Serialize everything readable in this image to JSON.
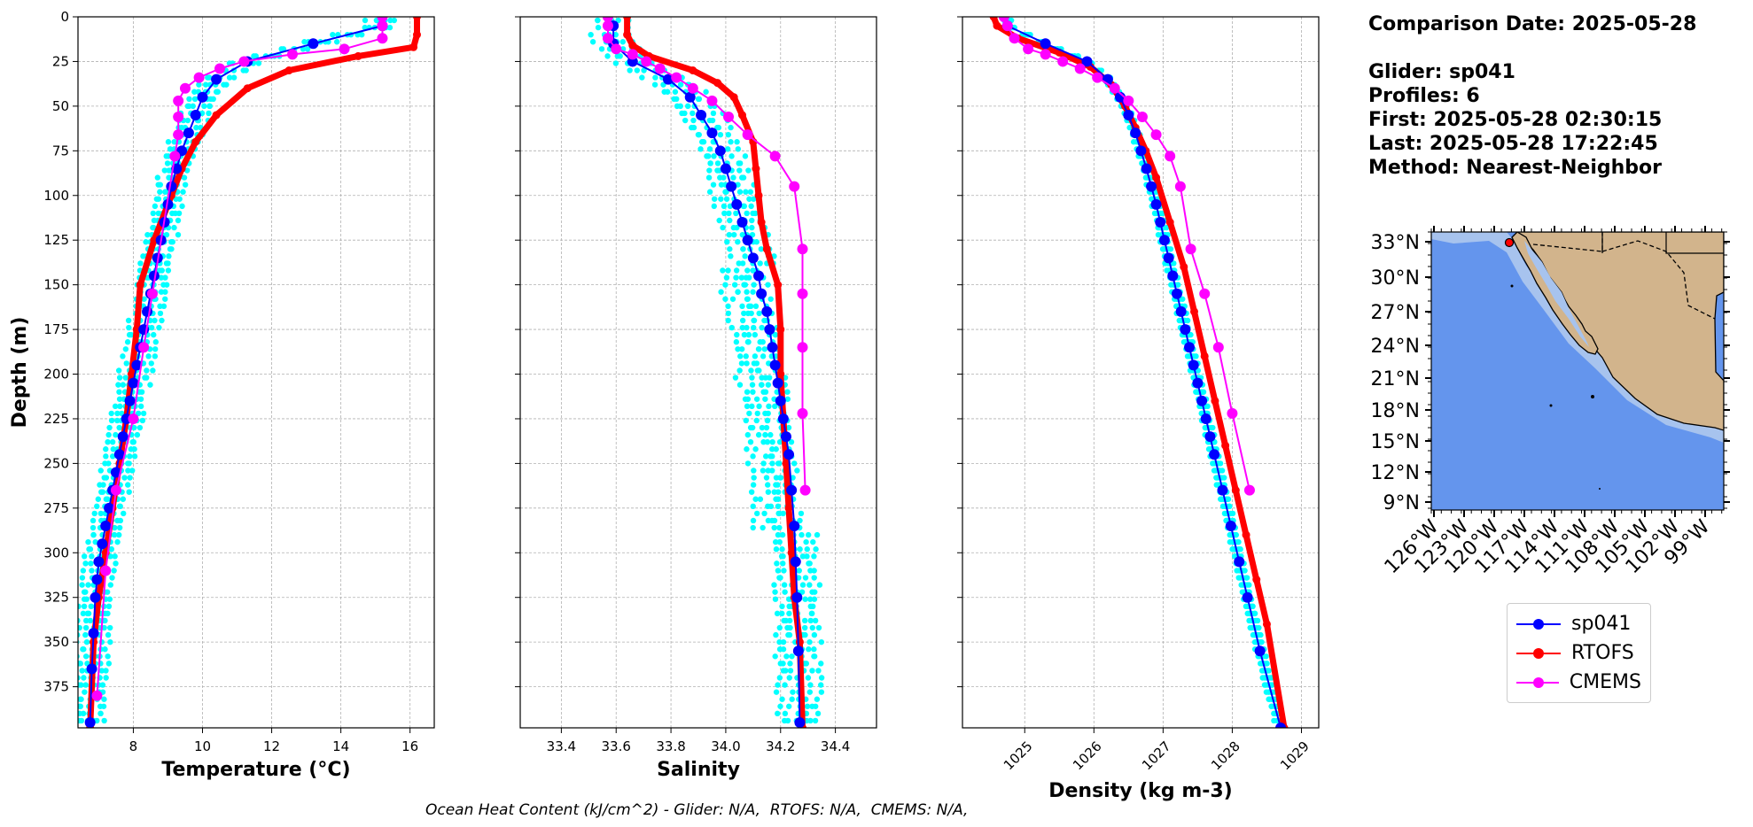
{
  "info": {
    "comparison_date": "Comparison Date: 2025-05-28",
    "glider": "Glider: sp041",
    "profiles": "Profiles: 6",
    "first": "First: 2025-05-28 02:30:15",
    "last": "Last: 2025-05-28 17:22:45",
    "method": "Method: Nearest-Neighbor"
  },
  "footnote": "Ocean Heat Content (kJ/cm^2) - Glider: N/A,  RTOFS: N/A,  CMEMS: N/A,",
  "colors": {
    "glider": "#0000ff",
    "rtofs": "#ff0000",
    "cmems": "#ff00ff",
    "raw": "#00ffff",
    "ocean": "#6495ed",
    "shelf": "#a7c3ee",
    "land": "#d2b48c",
    "grid": "#b0b0b0"
  },
  "legend": [
    {
      "label": "sp041",
      "color_key": "glider"
    },
    {
      "label": "RTOFS",
      "color_key": "rtofs"
    },
    {
      "label": "CMEMS",
      "color_key": "cmems"
    }
  ],
  "chart_data": [
    {
      "type": "line",
      "xlabel": "Temperature (°C)",
      "ylabel": "Depth (m)",
      "xlim": [
        6.4,
        16.7
      ],
      "ylim": [
        398,
        0
      ],
      "xticks": [
        8,
        10,
        12,
        14,
        16
      ],
      "yticks": [
        0,
        25,
        50,
        75,
        100,
        125,
        150,
        175,
        200,
        225,
        250,
        275,
        300,
        325,
        350,
        375
      ],
      "grid": true,
      "series": [
        {
          "name": "sp041",
          "color_key": "glider",
          "x": [
            15.2,
            13.2,
            11.3,
            10.4,
            10.0,
            9.8,
            9.6,
            9.4,
            9.25,
            9.1,
            9.0,
            8.9,
            8.8,
            8.7,
            8.6,
            8.5,
            8.4,
            8.3,
            8.2,
            8.1,
            8.0,
            7.9,
            7.8,
            7.7,
            7.6,
            7.5,
            7.4,
            7.3,
            7.2,
            7.1,
            7.0,
            6.95,
            6.9,
            6.85,
            6.8,
            6.75
          ],
          "y": [
            5,
            15,
            25,
            35,
            45,
            55,
            65,
            75,
            85,
            95,
            105,
            115,
            125,
            135,
            145,
            155,
            165,
            175,
            185,
            195,
            205,
            215,
            225,
            235,
            245,
            255,
            265,
            275,
            285,
            295,
            305,
            315,
            325,
            345,
            365,
            395
          ]
        },
        {
          "name": "RTOFS",
          "color_key": "rtofs",
          "x": [
            16.2,
            16.2,
            16.1,
            14.5,
            12.5,
            11.3,
            10.4,
            9.8,
            9.4,
            9.1,
            8.6,
            8.2,
            8.1,
            7.95,
            7.8,
            7.6,
            7.4,
            7.2,
            7.0,
            6.85,
            6.75
          ],
          "y": [
            0,
            10,
            17,
            22,
            30,
            40,
            55,
            70,
            85,
            100,
            125,
            150,
            175,
            200,
            225,
            250,
            275,
            300,
            325,
            350,
            398
          ]
        },
        {
          "name": "CMEMS",
          "color_key": "cmems",
          "x": [
            15.2,
            15.2,
            15.2,
            14.1,
            12.6,
            11.2,
            10.5,
            9.9,
            9.5,
            9.3,
            9.3,
            9.3,
            9.2,
            8.55,
            8.3,
            8.0,
            7.5,
            7.2,
            6.95
          ],
          "y": [
            0,
            5,
            12,
            18,
            21,
            25,
            29,
            34,
            40,
            47,
            56,
            66,
            78,
            155,
            185,
            225,
            265,
            310,
            380
          ]
        }
      ]
    },
    {
      "type": "line",
      "xlabel": "Salinity",
      "xlim": [
        33.25,
        34.55
      ],
      "ylim": [
        398,
        0
      ],
      "xticks": [
        33.4,
        33.6,
        33.8,
        34.0,
        34.2,
        34.4
      ],
      "xticklabels": [
        "33.4",
        "33.6",
        "33.8",
        "34.0",
        "34.2",
        "34.4"
      ],
      "grid": true,
      "series": [
        {
          "name": "sp041",
          "color_key": "glider",
          "x": [
            33.59,
            33.59,
            33.66,
            33.79,
            33.87,
            33.91,
            33.95,
            33.98,
            34.0,
            34.02,
            34.04,
            34.06,
            34.08,
            34.1,
            34.12,
            34.13,
            34.15,
            34.16,
            34.17,
            34.18,
            34.19,
            34.2,
            34.21,
            34.22,
            34.23,
            34.24,
            34.25,
            34.255,
            34.26,
            34.265,
            34.27
          ],
          "y": [
            5,
            15,
            25,
            35,
            45,
            55,
            65,
            75,
            85,
            95,
            105,
            115,
            125,
            135,
            145,
            155,
            165,
            175,
            185,
            195,
            205,
            215,
            225,
            235,
            245,
            265,
            285,
            305,
            325,
            355,
            395
          ]
        },
        {
          "name": "RTOFS",
          "color_key": "rtofs",
          "x": [
            33.64,
            33.64,
            33.66,
            33.72,
            33.88,
            33.97,
            34.03,
            34.06,
            34.1,
            34.11,
            34.12,
            34.13,
            34.15,
            34.19,
            34.2,
            34.2,
            34.21,
            34.22,
            34.23,
            34.24,
            34.25,
            34.27,
            34.28
          ],
          "y": [
            0,
            10,
            16,
            22,
            30,
            37,
            45,
            55,
            70,
            85,
            100,
            115,
            130,
            150,
            175,
            200,
            225,
            250,
            275,
            300,
            325,
            350,
            398
          ]
        },
        {
          "name": "CMEMS",
          "color_key": "cmems",
          "x": [
            33.57,
            33.57,
            33.57,
            33.6,
            33.66,
            33.71,
            33.76,
            33.82,
            33.88,
            33.95,
            34.01,
            34.08,
            34.18,
            34.25,
            34.28,
            34.28,
            34.28,
            34.28,
            34.29
          ],
          "y": [
            0,
            5,
            12,
            18,
            21,
            25,
            29,
            34,
            40,
            47,
            56,
            66,
            78,
            95,
            130,
            155,
            185,
            222,
            265
          ]
        }
      ]
    },
    {
      "type": "line",
      "xlabel": "Density (kg m-3)",
      "xlim": [
        1024.1,
        1029.25
      ],
      "ylim": [
        398,
        0
      ],
      "xticks": [
        1025,
        1026,
        1027,
        1028,
        1029
      ],
      "xticklabels": [
        "1025",
        "1026",
        "1027",
        "1028",
        "1029"
      ],
      "grid": true,
      "series": [
        {
          "name": "sp041",
          "color_key": "glider",
          "x": [
            1024.75,
            1025.3,
            1025.9,
            1026.2,
            1026.38,
            1026.5,
            1026.6,
            1026.68,
            1026.76,
            1026.83,
            1026.9,
            1026.96,
            1027.02,
            1027.08,
            1027.14,
            1027.2,
            1027.26,
            1027.32,
            1027.38,
            1027.44,
            1027.5,
            1027.56,
            1027.62,
            1027.68,
            1027.74,
            1027.86,
            1027.98,
            1028.1,
            1028.22,
            1028.4,
            1028.7
          ],
          "y": [
            5,
            15,
            25,
            35,
            45,
            55,
            65,
            75,
            85,
            95,
            105,
            115,
            125,
            135,
            145,
            155,
            165,
            175,
            185,
            195,
            205,
            215,
            225,
            235,
            245,
            265,
            285,
            305,
            325,
            355,
            398
          ]
        },
        {
          "name": "RTOFS",
          "color_key": "rtofs",
          "x": [
            1024.55,
            1024.6,
            1024.9,
            1025.5,
            1025.95,
            1026.25,
            1026.45,
            1026.6,
            1026.75,
            1026.9,
            1027.1,
            1027.3,
            1027.45,
            1027.6,
            1027.75,
            1027.9,
            1028.05,
            1028.2,
            1028.35,
            1028.5,
            1028.75
          ],
          "y": [
            0,
            5,
            12,
            20,
            28,
            38,
            50,
            62,
            75,
            90,
            115,
            140,
            165,
            190,
            215,
            240,
            265,
            290,
            315,
            340,
            398
          ]
        },
        {
          "name": "CMEMS",
          "color_key": "cmems",
          "x": [
            1024.7,
            1024.75,
            1024.85,
            1025.05,
            1025.3,
            1025.55,
            1025.8,
            1026.05,
            1026.3,
            1026.5,
            1026.7,
            1026.9,
            1027.1,
            1027.25,
            1027.4,
            1027.6,
            1027.8,
            1028.0,
            1028.25
          ],
          "y": [
            0,
            5,
            12,
            18,
            21,
            25,
            29,
            34,
            40,
            47,
            56,
            66,
            78,
            95,
            130,
            155,
            185,
            222,
            265
          ]
        }
      ]
    }
  ],
  "map": {
    "lat_ticks": [
      "33°N",
      "30°N",
      "27°N",
      "24°N",
      "21°N",
      "18°N",
      "15°N",
      "12°N",
      "9°N"
    ],
    "lon_ticks": [
      "126°W",
      "123°W",
      "120°W",
      "117°W",
      "114°W",
      "111°W",
      "108°W",
      "105°W",
      "102°W",
      "99°W"
    ],
    "glider_marker": "glider location"
  }
}
